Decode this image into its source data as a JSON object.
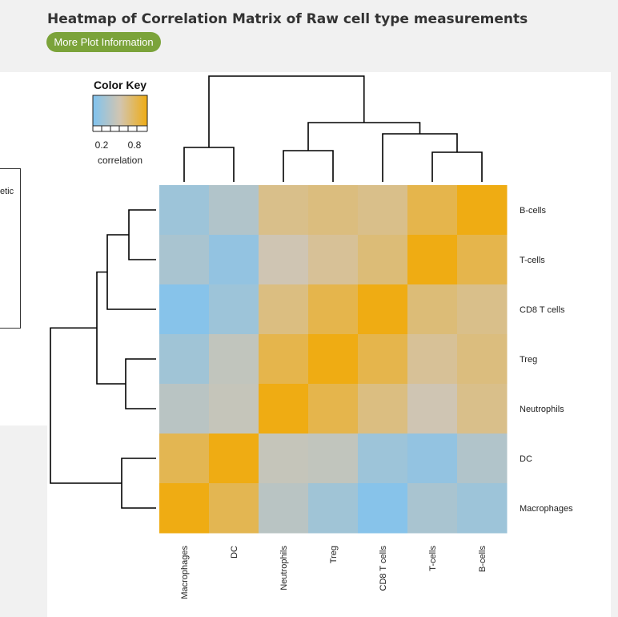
{
  "title": "Heatmap of Correlation Matrix of Raw cell type measurements",
  "info_button": {
    "label": "More Plot Information",
    "color": "#7ba33a"
  },
  "side_legend": {
    "text": "etic"
  },
  "chart_data": {
    "type": "heatmap",
    "title": "",
    "rows": [
      "B-cells",
      "T-cells",
      "CD8 T cells",
      "Treg",
      "Neutrophils",
      "DC",
      "Macrophages"
    ],
    "cols": [
      "Macrophages",
      "DC",
      "Neutrophils",
      "Treg",
      "CD8 T cells",
      "T-cells",
      "B-cells"
    ],
    "values": [
      [
        0.18,
        0.3,
        0.62,
        0.66,
        0.62,
        0.82,
        1.0
      ],
      [
        0.25,
        0.12,
        0.48,
        0.58,
        0.68,
        1.0,
        0.82
      ],
      [
        0.05,
        0.18,
        0.65,
        0.82,
        1.0,
        0.68,
        0.62
      ],
      [
        0.2,
        0.4,
        0.82,
        1.0,
        0.82,
        0.58,
        0.66
      ],
      [
        0.35,
        0.42,
        1.0,
        0.82,
        0.65,
        0.48,
        0.62
      ],
      [
        0.8,
        1.0,
        0.42,
        0.4,
        0.18,
        0.12,
        0.3
      ],
      [
        1.0,
        0.8,
        0.35,
        0.2,
        0.05,
        0.25,
        0.18
      ]
    ],
    "color_key": {
      "title": "Color Key",
      "ticks": [
        "0.2",
        "0.8"
      ],
      "label": "correlation",
      "range": [
        0,
        1
      ],
      "low_color": "#7fc3f0",
      "mid_color": "#d2c5b0",
      "high_color": "#efac13"
    }
  }
}
